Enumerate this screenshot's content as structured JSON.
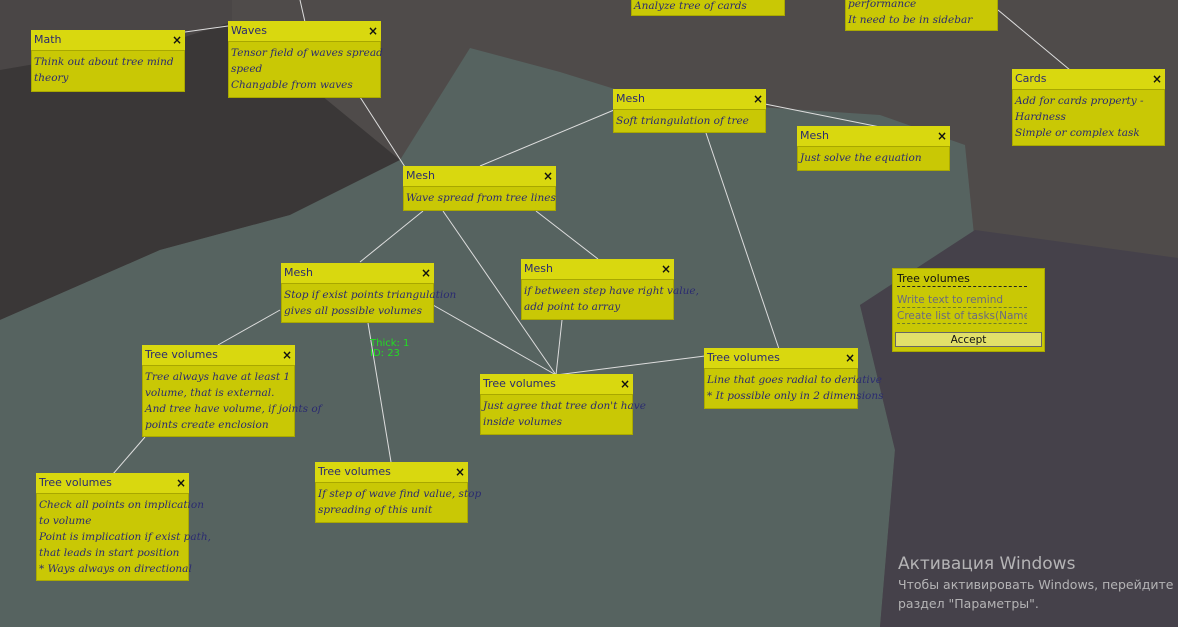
{
  "colors": {
    "note_body": "#c9c805",
    "note_header": "#d9d80f",
    "note_text": "#2b2b70",
    "region_main": "#566360",
    "region_dark": "#3a3737",
    "region_light": "#4f4b4a",
    "region_purple": "#45414a",
    "connector": "#dddddd",
    "debug_text": "#22dd22"
  },
  "close_glyph": "×",
  "notes": {
    "top_partial_a": {
      "title": "",
      "lines": [
        "Analyze tree of cards"
      ]
    },
    "top_partial_b": {
      "title": "",
      "lines": [
        "performance",
        "It need to be in sidebar"
      ]
    },
    "math": {
      "title": "Math",
      "lines": [
        "Think out about tree mind",
        "theory"
      ]
    },
    "waves": {
      "title": "Waves",
      "lines": [
        "Tensor field of waves spread",
        "speed",
        "Changable from waves"
      ]
    },
    "mesh_soft": {
      "title": "Mesh",
      "lines": [
        "Soft triangulation of tree"
      ]
    },
    "mesh_equation": {
      "title": "Mesh",
      "lines": [
        "Just solve the equation"
      ]
    },
    "cards": {
      "title": "Cards",
      "lines": [
        "Add for cards property -",
        "Hardness",
        "Simple or complex task"
      ]
    },
    "mesh_wave": {
      "title": "Mesh",
      "lines": [
        "Wave spread from tree lines"
      ]
    },
    "mesh_stop": {
      "title": "Mesh",
      "lines": [
        "Stop if exist points triangulation",
        "gives all possible volumes"
      ]
    },
    "mesh_step": {
      "title": "Mesh",
      "lines": [
        "if between step have right value,",
        "add point to array"
      ]
    },
    "tv_external": {
      "title": "Tree volumes",
      "lines": [
        "Tree always have at least 1",
        "volume, that is external.",
        "And tree have volume, if joints of",
        "points create enclosion"
      ]
    },
    "tv_agree": {
      "title": "Tree volumes",
      "lines": [
        "Just agree that tree don't have",
        "inside volumes"
      ]
    },
    "tv_radial": {
      "title": "Tree volumes",
      "lines": [
        "Line that goes radial to deriative",
        "* It possible only in 2 dimensions"
      ]
    },
    "tv_check": {
      "title": "Tree volumes",
      "lines": [
        "Check all points on implication",
        "to volume",
        "Point is implication if exist path,",
        "that leads in start position",
        "* Ways always on directional"
      ]
    },
    "tv_stepwave": {
      "title": "Tree volumes",
      "lines": [
        "If step of wave find value, stop",
        "spreading of this unit"
      ]
    }
  },
  "debug": {
    "line1": "Thick: 1",
    "line2": "ID: 23"
  },
  "form": {
    "title": "Tree volumes",
    "field1_placeholder": "Write text to remind",
    "field2_placeholder": "Create list of tasks(Name here)",
    "accept_label": "Accept"
  },
  "watermark": {
    "title": "Активация Windows",
    "line1": "Чтобы активировать Windows, перейдите в",
    "line2": "раздел \"Параметры\"."
  }
}
